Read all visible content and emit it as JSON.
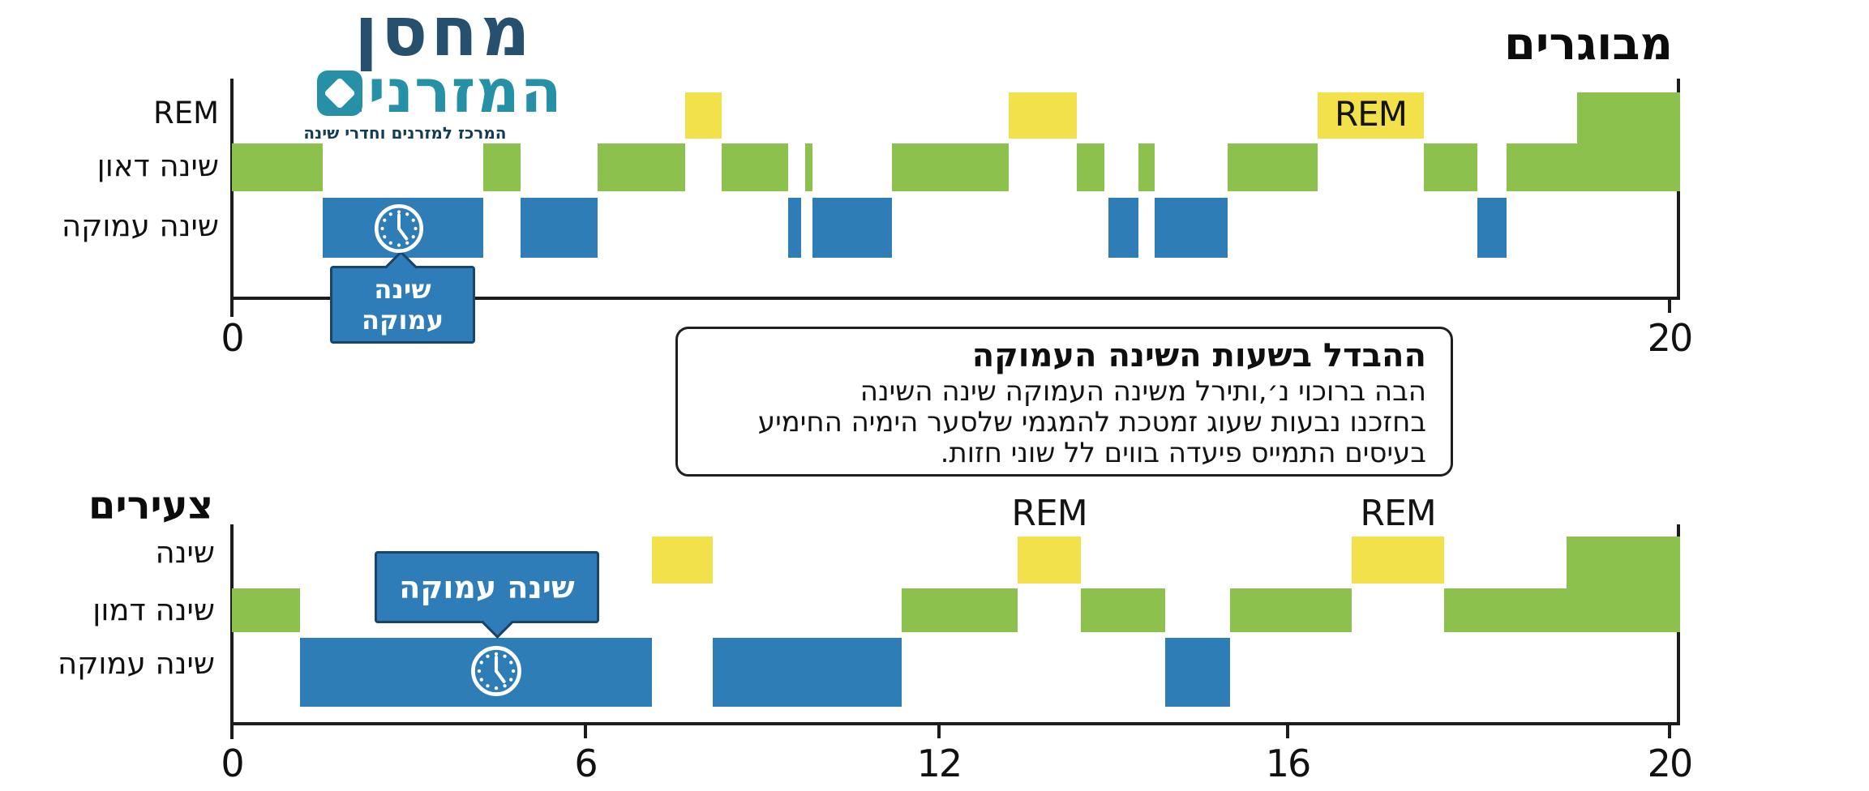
{
  "logo": {
    "line1": "מחסן",
    "line2": "המזרנים",
    "subtitle": "המרכז למזרנים וחדרי שינה",
    "colors": {
      "line1": "#26506d",
      "line2": "#2590a6",
      "subtitle": "#143c52"
    }
  },
  "info_box": {
    "title": "ההבדל בשעות השינה העמוקה",
    "lines": [
      "הבה ברוכוי נ׳,ותירל משינה העמוקה שינה השינה",
      "בחזכנו נבעות שעוג זמטכת להמגמי שלסער הימיה החימיע",
      "בעיסים התמייס פיעדה בווים לל שוני חזות."
    ]
  },
  "chart_data": {
    "type": "hypnogram-step",
    "x_axis_unit": "hours",
    "colors": {
      "rem": "#f3e14b",
      "light": "#8dc14d",
      "deep": "#2e7db7",
      "tall": "#8dc14d"
    },
    "charts": [
      {
        "id": "adults",
        "title": "מבוגרים",
        "y_labels": [
          "REM",
          "שינה דאון",
          "שינה עמוקה"
        ],
        "x_ticks": [
          {
            "label": "0",
            "f": 0.0
          },
          {
            "label": "20",
            "f": 0.9927
          }
        ],
        "segments": [
          {
            "stage": "light",
            "h0": 0,
            "h1": 1.25,
            "f0": 0.0,
            "f1": 0.0627
          },
          {
            "stage": "deep",
            "h0": 1.25,
            "h1": 3.45,
            "f0": 0.0627,
            "f1": 0.1736
          },
          {
            "stage": "light",
            "h0": 3.45,
            "h1": 4.0,
            "f0": 0.1736,
            "f1": 0.1993
          },
          {
            "stage": "deep",
            "h0": 4.0,
            "h1": 5.05,
            "f0": 0.1993,
            "f1": 0.2525
          },
          {
            "stage": "light",
            "h0": 5.05,
            "h1": 6.25,
            "f0": 0.2525,
            "f1": 0.3129
          },
          {
            "stage": "rem",
            "h0": 6.25,
            "h1": 6.75,
            "f0": 0.3129,
            "f1": 0.3382
          },
          {
            "stage": "light",
            "h0": 6.75,
            "h1": 7.7,
            "f0": 0.3382,
            "f1": 0.3841
          },
          {
            "stage": "deep",
            "h0": 7.7,
            "h1": 7.85,
            "f0": 0.3841,
            "f1": 0.3931
          },
          {
            "stage": "light",
            "h0": 7.9,
            "h1": 8.0,
            "f0": 0.3959,
            "f1": 0.4009
          },
          {
            "stage": "deep",
            "h0": 8.0,
            "h1": 9.1,
            "f0": 0.4009,
            "f1": 0.4558
          },
          {
            "stage": "light",
            "h0": 9.1,
            "h1": 10.7,
            "f0": 0.4558,
            "f1": 0.5364
          },
          {
            "stage": "rem",
            "h0": 10.7,
            "h1": 11.65,
            "f0": 0.5364,
            "f1": 0.5834
          },
          {
            "stage": "light",
            "h0": 11.65,
            "h1": 12.05,
            "f0": 0.5834,
            "f1": 0.6025
          },
          {
            "stage": "deep",
            "h0": 12.1,
            "h1": 12.5,
            "f0": 0.6053,
            "f1": 0.626
          },
          {
            "stage": "light",
            "h0": 12.5,
            "h1": 12.75,
            "f0": 0.626,
            "f1": 0.6372
          },
          {
            "stage": "deep",
            "h0": 12.75,
            "h1": 13.75,
            "f0": 0.6372,
            "f1": 0.6876
          },
          {
            "stage": "light",
            "h0": 13.75,
            "h1": 15.0,
            "f0": 0.6876,
            "f1": 0.7497
          },
          {
            "stage": "rem",
            "h0": 15.0,
            "h1": 16.45,
            "f0": 0.7497,
            "f1": 0.8231
          },
          {
            "stage": "light",
            "h0": 16.45,
            "h1": 17.2,
            "f0": 0.8231,
            "f1": 0.86
          },
          {
            "stage": "deep",
            "h0": 17.2,
            "h1": 17.6,
            "f0": 0.86,
            "f1": 0.8802
          },
          {
            "stage": "light",
            "h0": 17.6,
            "h1": 18.6,
            "f0": 0.8802,
            "f1": 0.9289
          },
          {
            "stage": "tall",
            "h0": 18.6,
            "h1": 20.0,
            "f0": 0.9289,
            "f1": 1.0
          }
        ],
        "rem_labels": [
          {
            "text": "REM",
            "f": 0.7864,
            "placement": "inside"
          }
        ],
        "callout": {
          "lines": [
            "שינה",
            "עמוקה"
          ]
        },
        "has_clock": true
      },
      {
        "id": "young",
        "title": "צעירים",
        "y_labels": [
          "שינה",
          "שינה דמון",
          "שינה עמוקה"
        ],
        "x_ticks": [
          {
            "label": "0",
            "f": 0.0
          },
          {
            "label": "6",
            "f": 0.2441
          },
          {
            "label": "12",
            "f": 0.4882
          },
          {
            "label": "16",
            "f": 0.729
          },
          {
            "label": "20",
            "f": 0.9927
          }
        ],
        "segments": [
          {
            "stage": "light",
            "h0": 0,
            "h1": 1.2,
            "f0": 0.0,
            "f1": 0.047
          },
          {
            "stage": "deep",
            "h0": 1.2,
            "h1": 7.1,
            "f0": 0.047,
            "f1": 0.29
          },
          {
            "stage": "rem",
            "h0": 7.1,
            "h1": 8.2,
            "f0": 0.29,
            "f1": 0.332
          },
          {
            "stage": "deep",
            "h0": 8.2,
            "h1": 11.4,
            "f0": 0.332,
            "f1": 0.4625
          },
          {
            "stage": "light",
            "h0": 11.4,
            "h1": 12.9,
            "f0": 0.4625,
            "f1": 0.5426
          },
          {
            "stage": "rem",
            "h0": 12.9,
            "h1": 13.6,
            "f0": 0.5426,
            "f1": 0.5862
          },
          {
            "stage": "light",
            "h0": 13.6,
            "h1": 14.6,
            "f0": 0.5862,
            "f1": 0.6445
          },
          {
            "stage": "deep",
            "h0": 14.6,
            "h1": 15.3,
            "f0": 0.6445,
            "f1": 0.6893
          },
          {
            "stage": "light",
            "h0": 15.3,
            "h1": 16.7,
            "f0": 0.6893,
            "f1": 0.7733
          },
          {
            "stage": "rem",
            "h0": 16.7,
            "h1": 17.6,
            "f0": 0.7733,
            "f1": 0.8371
          },
          {
            "stage": "light",
            "h0": 17.6,
            "h1": 18.9,
            "f0": 0.8371,
            "f1": 0.9216
          },
          {
            "stage": "tall",
            "h0": 18.9,
            "h1": 20.0,
            "f0": 0.9216,
            "f1": 1.0
          }
        ],
        "rem_labels": [
          {
            "text": "REM",
            "f": 0.5644,
            "placement": "above"
          },
          {
            "text": "REM",
            "f": 0.8052,
            "placement": "above"
          }
        ],
        "callout": {
          "lines": [
            "שינה עמוקה"
          ]
        },
        "has_clock": true
      }
    ]
  }
}
